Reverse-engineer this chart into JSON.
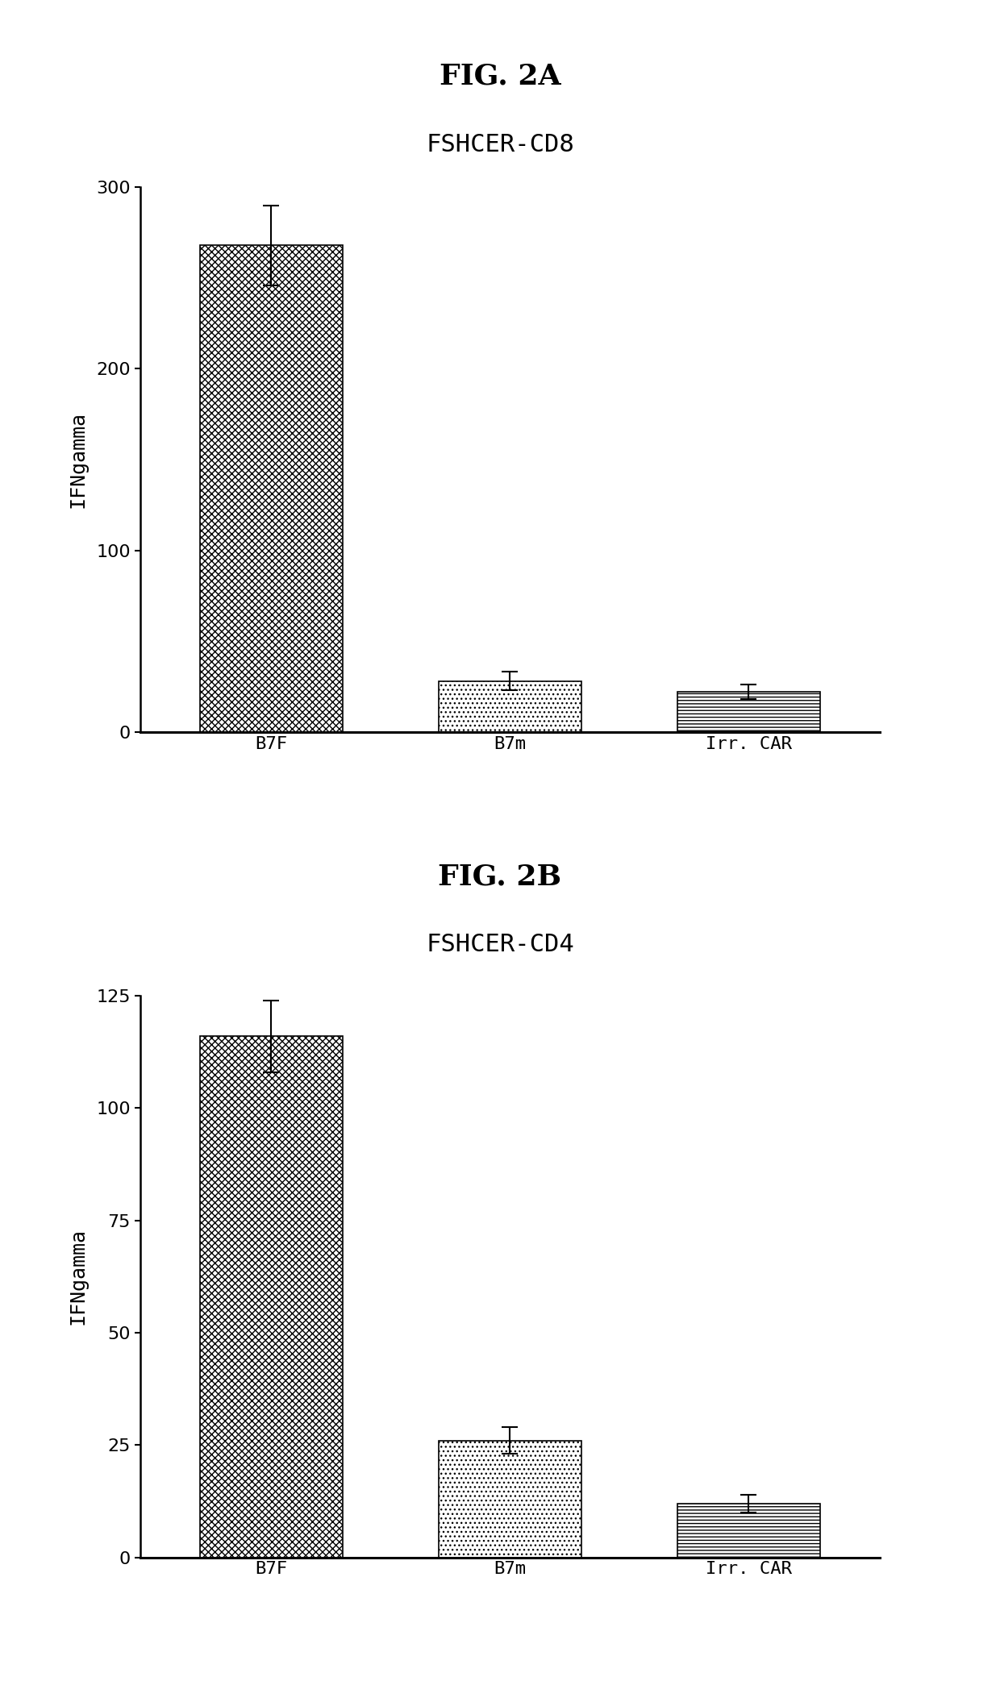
{
  "fig2a_title": "FIG. 2A",
  "fig2a_subtitle": "FSHCER-CD8",
  "fig2b_title": "FIG. 2B",
  "fig2b_subtitle": "FSHCER-CD4",
  "categories": [
    "B7F",
    "B7m",
    "Irr. CAR"
  ],
  "fig2a_values": [
    268,
    28,
    22
  ],
  "fig2a_errors": [
    22,
    5,
    4
  ],
  "fig2b_values": [
    116,
    26,
    12
  ],
  "fig2b_errors": [
    8,
    3,
    2
  ],
  "fig2a_ylim": [
    0,
    300
  ],
  "fig2a_yticks": [
    0,
    100,
    200,
    300
  ],
  "fig2b_ylim": [
    0,
    125
  ],
  "fig2b_yticks": [
    0,
    25,
    50,
    75,
    100,
    125
  ],
  "ylabel": "IFNgamma",
  "background_color": "#ffffff",
  "title_fontsize": 26,
  "subtitle_fontsize": 22,
  "axis_label_fontsize": 18,
  "tick_fontsize": 16
}
